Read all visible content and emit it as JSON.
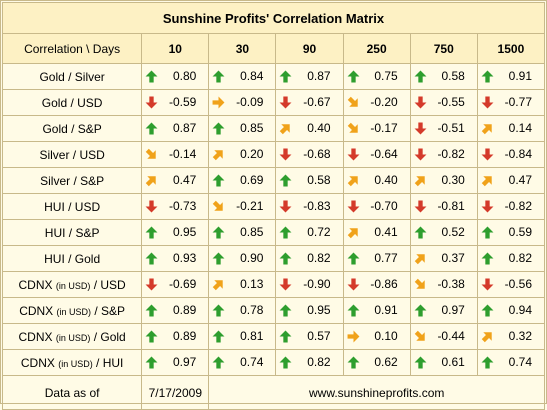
{
  "title": "Sunshine Profits' Correlation Matrix",
  "header": {
    "corner": "Correlation \\ Days",
    "periods": [
      "10",
      "30",
      "90",
      "250",
      "750",
      "1500"
    ]
  },
  "colors": {
    "up": "#2e9e2e",
    "down": "#d43a2a",
    "diag": "#f0a21a",
    "border": "#c8b98a",
    "header_bg": "#fdf1c4",
    "cell_bg": "#fffbe6"
  },
  "rows": [
    {
      "pre": "Gold / Silver",
      "small": "",
      "post": "",
      "cells": [
        {
          "icon": "arrow-up-icon",
          "value": "0.80"
        },
        {
          "icon": "arrow-up-icon",
          "value": "0.84"
        },
        {
          "icon": "arrow-up-icon",
          "value": "0.87"
        },
        {
          "icon": "arrow-up-icon",
          "value": "0.75"
        },
        {
          "icon": "arrow-up-icon",
          "value": "0.58"
        },
        {
          "icon": "arrow-up-icon",
          "value": "0.91"
        }
      ]
    },
    {
      "pre": "Gold / USD",
      "small": "",
      "post": "",
      "cells": [
        {
          "icon": "arrow-down-icon",
          "value": "-0.59"
        },
        {
          "icon": "arrow-right-icon",
          "value": "-0.09"
        },
        {
          "icon": "arrow-down-icon",
          "value": "-0.67"
        },
        {
          "icon": "arrow-down-right-icon",
          "value": "-0.20"
        },
        {
          "icon": "arrow-down-icon",
          "value": "-0.55"
        },
        {
          "icon": "arrow-down-icon",
          "value": "-0.77"
        }
      ]
    },
    {
      "pre": "Gold / S&P",
      "small": "",
      "post": "",
      "cells": [
        {
          "icon": "arrow-up-icon",
          "value": "0.87"
        },
        {
          "icon": "arrow-up-icon",
          "value": "0.85"
        },
        {
          "icon": "arrow-up-right-icon",
          "value": "0.40"
        },
        {
          "icon": "arrow-down-right-icon",
          "value": "-0.17"
        },
        {
          "icon": "arrow-down-icon",
          "value": "-0.51"
        },
        {
          "icon": "arrow-up-right-icon",
          "value": "0.14"
        }
      ]
    },
    {
      "pre": "Silver / USD",
      "small": "",
      "post": "",
      "cells": [
        {
          "icon": "arrow-down-right-icon",
          "value": "-0.14"
        },
        {
          "icon": "arrow-up-right-icon",
          "value": "0.20"
        },
        {
          "icon": "arrow-down-icon",
          "value": "-0.68"
        },
        {
          "icon": "arrow-down-icon",
          "value": "-0.64"
        },
        {
          "icon": "arrow-down-icon",
          "value": "-0.82"
        },
        {
          "icon": "arrow-down-icon",
          "value": "-0.84"
        }
      ]
    },
    {
      "pre": "Silver / S&P",
      "small": "",
      "post": "",
      "cells": [
        {
          "icon": "arrow-up-right-icon",
          "value": "0.47"
        },
        {
          "icon": "arrow-up-icon",
          "value": "0.69"
        },
        {
          "icon": "arrow-up-icon",
          "value": "0.58"
        },
        {
          "icon": "arrow-up-right-icon",
          "value": "0.40"
        },
        {
          "icon": "arrow-up-right-icon",
          "value": "0.30"
        },
        {
          "icon": "arrow-up-right-icon",
          "value": "0.47"
        }
      ]
    },
    {
      "pre": "HUI / USD",
      "small": "",
      "post": "",
      "cells": [
        {
          "icon": "arrow-down-icon",
          "value": "-0.73"
        },
        {
          "icon": "arrow-down-right-icon",
          "value": "-0.21"
        },
        {
          "icon": "arrow-down-icon",
          "value": "-0.83"
        },
        {
          "icon": "arrow-down-icon",
          "value": "-0.70"
        },
        {
          "icon": "arrow-down-icon",
          "value": "-0.81"
        },
        {
          "icon": "arrow-down-icon",
          "value": "-0.82"
        }
      ]
    },
    {
      "pre": "HUI / S&P",
      "small": "",
      "post": "",
      "cells": [
        {
          "icon": "arrow-up-icon",
          "value": "0.95"
        },
        {
          "icon": "arrow-up-icon",
          "value": "0.85"
        },
        {
          "icon": "arrow-up-icon",
          "value": "0.72"
        },
        {
          "icon": "arrow-up-right-icon",
          "value": "0.41"
        },
        {
          "icon": "arrow-up-icon",
          "value": "0.52"
        },
        {
          "icon": "arrow-up-icon",
          "value": "0.59"
        }
      ]
    },
    {
      "pre": "HUI / Gold",
      "small": "",
      "post": "",
      "cells": [
        {
          "icon": "arrow-up-icon",
          "value": "0.93"
        },
        {
          "icon": "arrow-up-icon",
          "value": "0.90"
        },
        {
          "icon": "arrow-up-icon",
          "value": "0.82"
        },
        {
          "icon": "arrow-up-icon",
          "value": "0.77"
        },
        {
          "icon": "arrow-up-right-icon",
          "value": "0.37"
        },
        {
          "icon": "arrow-up-icon",
          "value": "0.82"
        }
      ]
    },
    {
      "pre": "CDNX ",
      "small": "(in USD)",
      "post": " / USD",
      "cells": [
        {
          "icon": "arrow-down-icon",
          "value": "-0.69"
        },
        {
          "icon": "arrow-up-right-icon",
          "value": "0.13"
        },
        {
          "icon": "arrow-down-icon",
          "value": "-0.90"
        },
        {
          "icon": "arrow-down-icon",
          "value": "-0.86"
        },
        {
          "icon": "arrow-down-right-icon",
          "value": "-0.38"
        },
        {
          "icon": "arrow-down-icon",
          "value": "-0.56"
        }
      ]
    },
    {
      "pre": "CDNX ",
      "small": "(in USD)",
      "post": " / S&P",
      "cells": [
        {
          "icon": "arrow-up-icon",
          "value": "0.89"
        },
        {
          "icon": "arrow-up-icon",
          "value": "0.78"
        },
        {
          "icon": "arrow-up-icon",
          "value": "0.95"
        },
        {
          "icon": "arrow-up-icon",
          "value": "0.91"
        },
        {
          "icon": "arrow-up-icon",
          "value": "0.97"
        },
        {
          "icon": "arrow-up-icon",
          "value": "0.94"
        }
      ]
    },
    {
      "pre": "CDNX ",
      "small": "(in USD)",
      "post": " / Gold",
      "cells": [
        {
          "icon": "arrow-up-icon",
          "value": "0.89"
        },
        {
          "icon": "arrow-up-icon",
          "value": "0.81"
        },
        {
          "icon": "arrow-up-icon",
          "value": "0.57"
        },
        {
          "icon": "arrow-right-icon",
          "value": "0.10"
        },
        {
          "icon": "arrow-down-right-icon",
          "value": "-0.44"
        },
        {
          "icon": "arrow-up-right-icon",
          "value": "0.32"
        }
      ]
    },
    {
      "pre": "CDNX ",
      "small": "(in USD)",
      "post": " / HUI",
      "cells": [
        {
          "icon": "arrow-up-icon",
          "value": "0.97"
        },
        {
          "icon": "arrow-up-icon",
          "value": "0.74"
        },
        {
          "icon": "arrow-up-icon",
          "value": "0.82"
        },
        {
          "icon": "arrow-up-icon",
          "value": "0.62"
        },
        {
          "icon": "arrow-up-icon",
          "value": "0.61"
        },
        {
          "icon": "arrow-up-icon",
          "value": "0.74"
        }
      ]
    }
  ],
  "footer": {
    "label": "Data as of",
    "date": "7/17/2009",
    "website": "www.sunshineprofits.com"
  }
}
